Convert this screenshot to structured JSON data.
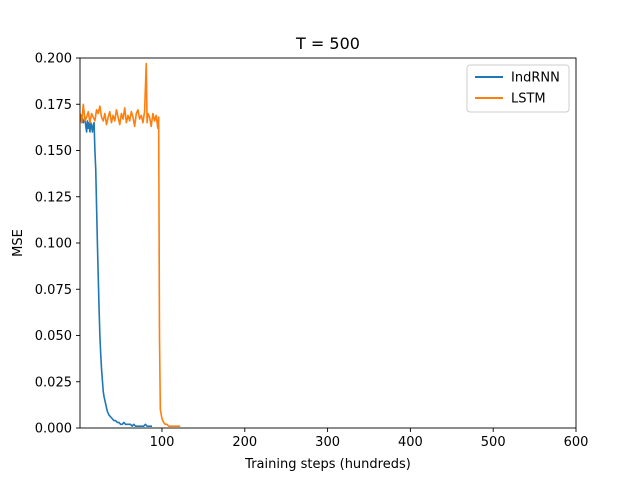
{
  "chart_data": {
    "type": "line",
    "title": "T = 500",
    "xlabel": "Training steps (hundreds)",
    "ylabel": "MSE",
    "xlim": [
      1,
      600
    ],
    "ylim": [
      0,
      0.2
    ],
    "xticks": [
      100,
      200,
      300,
      400,
      500,
      600
    ],
    "xtick_labels": [
      "100",
      "200",
      "300",
      "400",
      "500",
      "600"
    ],
    "yticks": [
      0.0,
      0.025,
      0.05,
      0.075,
      0.1,
      0.125,
      0.15,
      0.175,
      0.2
    ],
    "ytick_labels": [
      "0.000",
      "0.025",
      "0.050",
      "0.075",
      "0.100",
      "0.125",
      "0.150",
      "0.175",
      "0.200"
    ],
    "grid": false,
    "legend_position": "top-right",
    "series": [
      {
        "name": "IndRNN",
        "color": "#1f77b4",
        "x": [
          1,
          2,
          3,
          4,
          5,
          6,
          7,
          8,
          9,
          10,
          11,
          12,
          13,
          14,
          15,
          16,
          17,
          18,
          19,
          20,
          21,
          22,
          23,
          24,
          25,
          26,
          27,
          28,
          29,
          30,
          31,
          32,
          33,
          34,
          35,
          36,
          38,
          40,
          42,
          44,
          46,
          48,
          50,
          52,
          54,
          56,
          58,
          60,
          62,
          64,
          66,
          68,
          70,
          72,
          74,
          76,
          78,
          80,
          82,
          84,
          86,
          88
        ],
        "y": [
          0.168,
          0.166,
          0.169,
          0.167,
          0.165,
          0.166,
          0.168,
          0.163,
          0.16,
          0.166,
          0.162,
          0.165,
          0.16,
          0.165,
          0.163,
          0.16,
          0.164,
          0.165,
          0.15,
          0.14,
          0.12,
          0.1,
          0.082,
          0.065,
          0.05,
          0.04,
          0.032,
          0.026,
          0.02,
          0.017,
          0.015,
          0.013,
          0.011,
          0.009,
          0.008,
          0.007,
          0.006,
          0.005,
          0.004,
          0.004,
          0.003,
          0.003,
          0.002,
          0.002,
          0.003,
          0.002,
          0.002,
          0.002,
          0.002,
          0.001,
          0.002,
          0.001,
          0.001,
          0.001,
          0.001,
          0.001,
          0.001,
          0.002,
          0.001,
          0.001,
          0.001,
          0.001
        ]
      },
      {
        "name": "LSTM",
        "color": "#ff7f0e",
        "x": [
          1,
          3,
          5,
          7,
          9,
          11,
          13,
          15,
          17,
          19,
          21,
          23,
          25,
          27,
          29,
          31,
          33,
          35,
          37,
          39,
          41,
          43,
          45,
          47,
          49,
          51,
          53,
          55,
          57,
          59,
          61,
          63,
          65,
          67,
          69,
          71,
          73,
          75,
          77,
          79,
          81,
          82,
          83,
          85,
          87,
          89,
          91,
          93,
          95,
          96,
          97,
          98,
          100,
          102,
          104,
          106,
          108,
          110,
          112,
          114,
          116,
          118,
          120,
          122
        ],
        "y": [
          0.17,
          0.165,
          0.175,
          0.166,
          0.168,
          0.171,
          0.165,
          0.17,
          0.168,
          0.166,
          0.172,
          0.17,
          0.174,
          0.168,
          0.166,
          0.17,
          0.164,
          0.168,
          0.171,
          0.165,
          0.169,
          0.166,
          0.172,
          0.168,
          0.164,
          0.17,
          0.167,
          0.173,
          0.165,
          0.169,
          0.166,
          0.171,
          0.168,
          0.163,
          0.17,
          0.172,
          0.167,
          0.169,
          0.165,
          0.171,
          0.197,
          0.165,
          0.17,
          0.168,
          0.163,
          0.17,
          0.166,
          0.169,
          0.162,
          0.168,
          0.05,
          0.01,
          0.005,
          0.003,
          0.002,
          0.002,
          0.001,
          0.001,
          0.001,
          0.001,
          0.001,
          0.001,
          0.001,
          0.001
        ]
      }
    ]
  }
}
